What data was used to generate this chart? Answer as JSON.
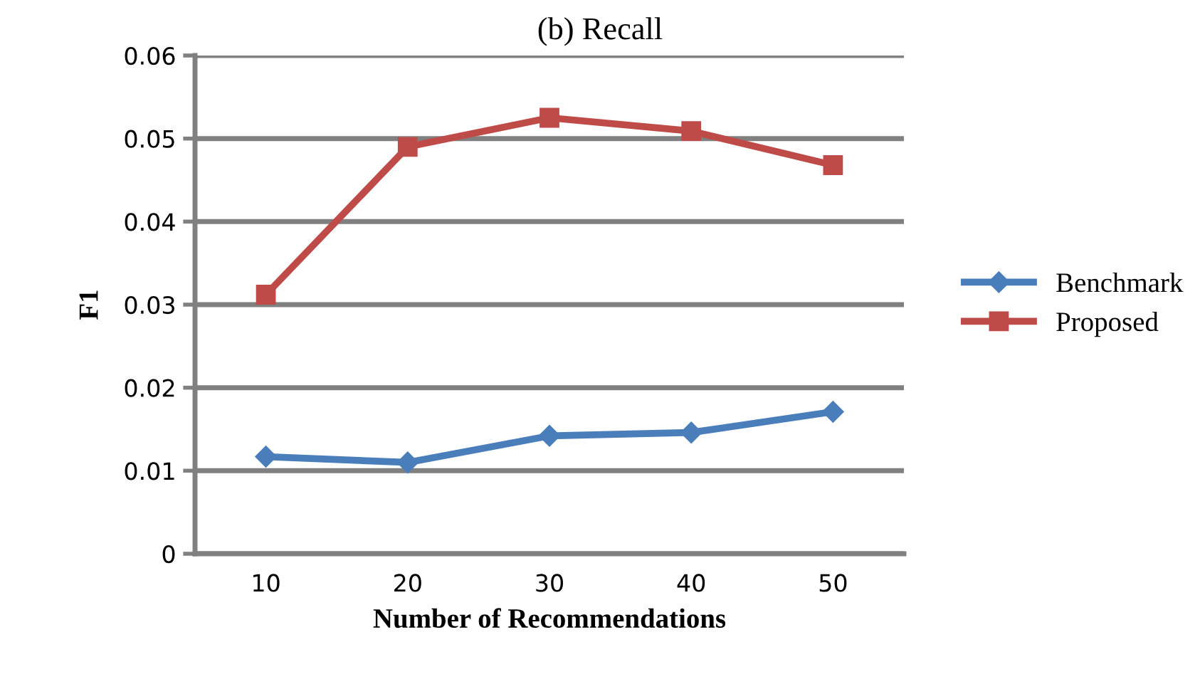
{
  "chart_data": {
    "type": "line",
    "title": "(b) Recall",
    "xlabel": "Number of Recommendations",
    "ylabel": "F1",
    "categories": [
      "10",
      "20",
      "30",
      "40",
      "50"
    ],
    "series": [
      {
        "name": "Benchmark",
        "color": "#4a7ebb",
        "marker": "diamond",
        "values": [
          0.0117,
          0.011,
          0.0142,
          0.0146,
          0.0171
        ]
      },
      {
        "name": "Proposed",
        "color": "#be4b48",
        "marker": "square",
        "values": [
          0.0312,
          0.049,
          0.0525,
          0.0509,
          0.0468
        ]
      }
    ],
    "ylim": [
      0,
      0.06
    ],
    "yticks": [
      0,
      0.01,
      0.02,
      0.03,
      0.04,
      0.05,
      0.06
    ],
    "grid": "y",
    "legend": "right",
    "line_style": "solid"
  }
}
